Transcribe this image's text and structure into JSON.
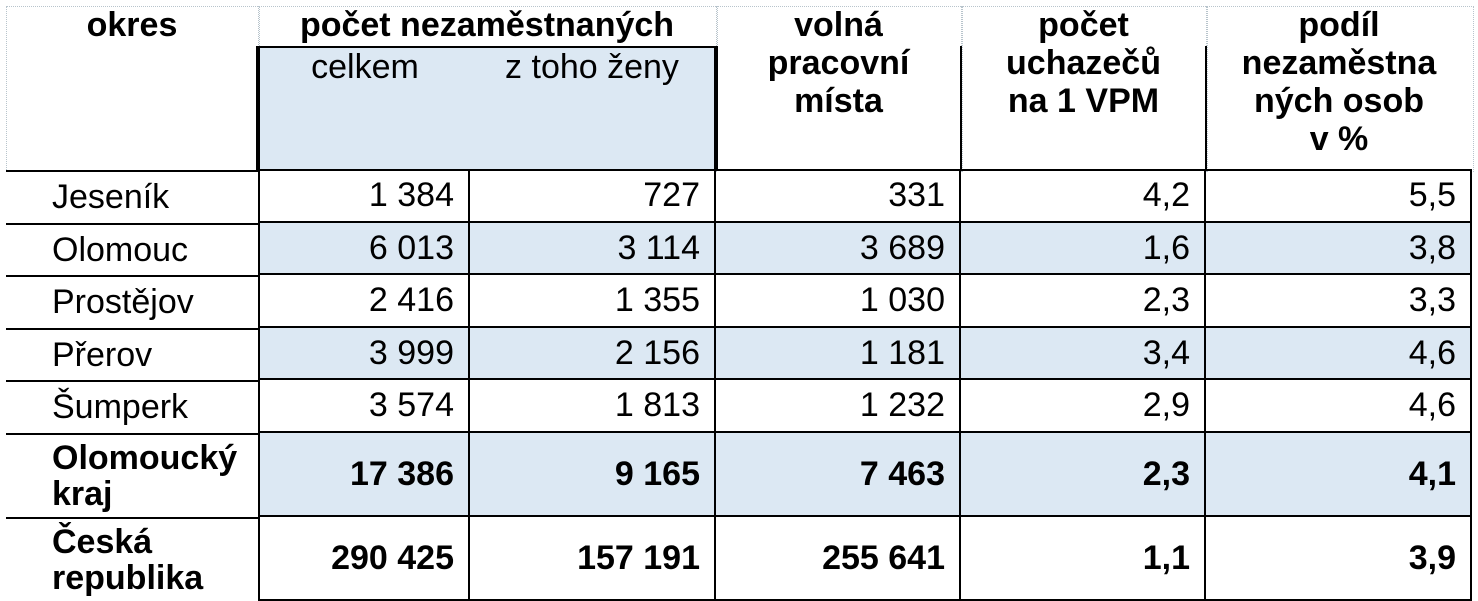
{
  "table": {
    "headers": {
      "okres": "okres",
      "pocet_nezamestnanych": "počet nezaměstnaných",
      "celkem": "celkem",
      "z_toho_zeny": "z toho ženy",
      "volna_pracovni_mista": [
        "volná",
        "pracovní",
        "místa"
      ],
      "pocet_uchazecu": [
        "počet",
        "uchazečů",
        "na 1 VPM"
      ],
      "podil": [
        "podíl",
        "nezaměstna",
        "ných osob",
        "v %"
      ]
    },
    "rows": [
      {
        "okres": "Jeseník",
        "celkem": "1 384",
        "zeny": "727",
        "vpm": "331",
        "uchazeci": "4,2",
        "podil": "5,5"
      },
      {
        "okres": "Olomouc",
        "celkem": "6 013",
        "zeny": "3 114",
        "vpm": "3 689",
        "uchazeci": "1,6",
        "podil": "3,8"
      },
      {
        "okres": "Prostějov",
        "celkem": "2 416",
        "zeny": "1 355",
        "vpm": "1 030",
        "uchazeci": "2,3",
        "podil": "3,3"
      },
      {
        "okres": "Přerov",
        "celkem": "3 999",
        "zeny": "2 156",
        "vpm": "1 181",
        "uchazeci": "3,4",
        "podil": "4,6"
      },
      {
        "okres": "Šumperk",
        "celkem": "3 574",
        "zeny": "1 813",
        "vpm": "1 232",
        "uchazeci": "2,9",
        "podil": "4,6"
      }
    ],
    "totals": [
      {
        "okres": [
          "Olomoucký",
          "kraj"
        ],
        "celkem": "17 386",
        "zeny": "9 165",
        "vpm": "7 463",
        "uchazeci": "2,3",
        "podil": "4,1"
      },
      {
        "okres": [
          "Česká",
          "republika"
        ],
        "celkem": "290 425",
        "zeny": "157 191",
        "vpm": "255 641",
        "uchazeci": "1,1",
        "podil": "3,9"
      }
    ]
  },
  "colors": {
    "shade": "#dce8f3",
    "border": "#000000",
    "gridline": "#b8c4cc"
  }
}
